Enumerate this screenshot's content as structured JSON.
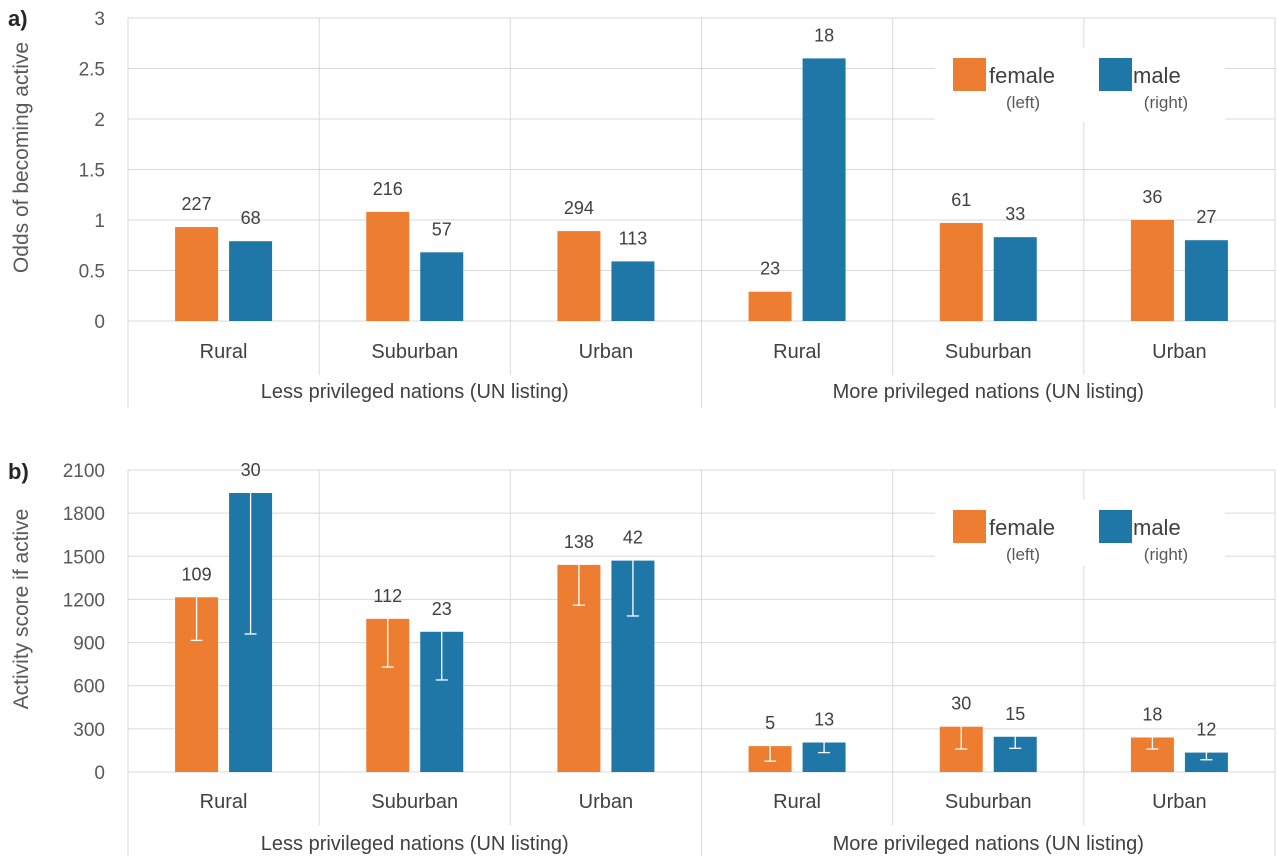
{
  "colors": {
    "female": "#ED7D31",
    "male": "#1F77A8",
    "grid": "#D9D9D9",
    "errorbar": "#FFFFFF"
  },
  "legend": {
    "position": "top-right",
    "female_label": "female",
    "female_sub": "(left)",
    "male_label": "male",
    "male_sub": "(right)"
  },
  "chart_data": [
    {
      "type": "bar",
      "panel_label": "a)",
      "ylabel": "Odds of becoming active",
      "ylim": [
        0,
        3
      ],
      "yticks": [
        0,
        0.5,
        1,
        1.5,
        2,
        2.5,
        3
      ],
      "ytick_labels": [
        "0",
        "0.5",
        "1",
        "1.5",
        "2",
        "2.5",
        "3"
      ],
      "grid": true,
      "categories": [
        "Rural",
        "Suburban",
        "Urban",
        "Rural",
        "Suburban",
        "Urban"
      ],
      "groups": [
        {
          "label": "Less privileged nations (UN listing)",
          "categories": [
            0,
            1,
            2
          ]
        },
        {
          "label": "More privileged nations (UN listing)",
          "categories": [
            3,
            4,
            5
          ]
        }
      ],
      "series": [
        {
          "name": "female",
          "values": [
            0.93,
            1.08,
            0.89,
            0.29,
            0.97,
            1.0
          ],
          "labels": [
            "227",
            "216",
            "294",
            "23",
            "61",
            "36"
          ]
        },
        {
          "name": "male",
          "values": [
            0.79,
            0.68,
            0.59,
            2.6,
            0.83,
            0.8
          ],
          "labels": [
            "68",
            "57",
            "113",
            "18",
            "33",
            "27"
          ]
        }
      ]
    },
    {
      "type": "bar",
      "panel_label": "b)",
      "ylabel": "Activity score if active",
      "ylim": [
        0,
        2100
      ],
      "yticks": [
        0,
        300,
        600,
        900,
        1200,
        1500,
        1800,
        2100
      ],
      "ytick_labels": [
        "0",
        "300",
        "600",
        "900",
        "1200",
        "1500",
        "1800",
        "2100"
      ],
      "grid": true,
      "categories": [
        "Rural",
        "Suburban",
        "Urban",
        "Rural",
        "Suburban",
        "Urban"
      ],
      "groups": [
        {
          "label": "Less privileged nations (UN listing)",
          "categories": [
            0,
            1,
            2
          ]
        },
        {
          "label": "More privileged nations (UN listing)",
          "categories": [
            3,
            4,
            5
          ]
        }
      ],
      "series": [
        {
          "name": "female",
          "values": [
            1215,
            1065,
            1440,
            180,
            315,
            240
          ],
          "error_low": [
            915,
            730,
            1160,
            75,
            160,
            160
          ],
          "labels": [
            "109",
            "112",
            "138",
            "5",
            "30",
            "18"
          ]
        },
        {
          "name": "male",
          "values": [
            1940,
            975,
            1470,
            205,
            245,
            135
          ],
          "error_low": [
            960,
            640,
            1085,
            135,
            165,
            85
          ],
          "labels": [
            "30",
            "23",
            "42",
            "13",
            "15",
            "12"
          ]
        }
      ]
    }
  ]
}
